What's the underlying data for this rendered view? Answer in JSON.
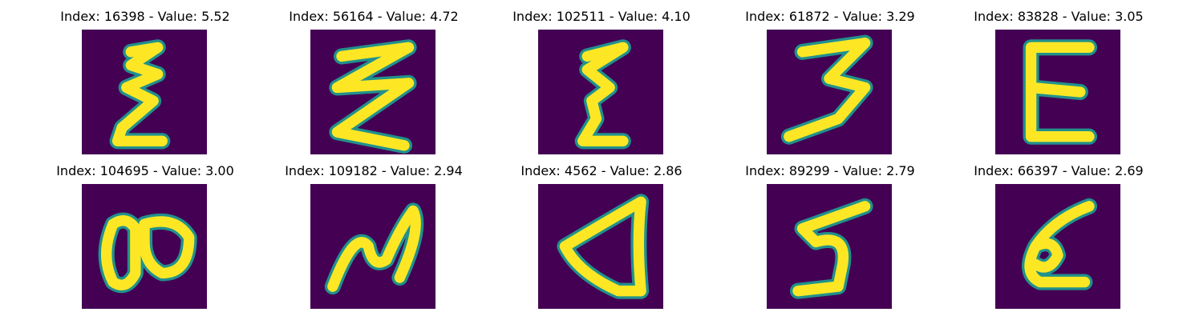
{
  "colors": {
    "background": "#440154",
    "stroke": "#fde725",
    "stroke_edge": "#21918c"
  },
  "panels": [
    {
      "index": 16398,
      "value": "5.52",
      "title": "Index: 16398 - Value: 5.52",
      "glyph": "zigzag-z"
    },
    {
      "index": 56164,
      "value": "4.72",
      "title": "Index: 56164 - Value: 4.72",
      "glyph": "wide-zigzag"
    },
    {
      "index": 102511,
      "value": "4.10",
      "title": "Index: 102511 - Value: 4.10",
      "glyph": "narrow-zigzag"
    },
    {
      "index": 61872,
      "value": "3.29",
      "title": "Index: 61872 - Value: 3.29",
      "glyph": "bold-three"
    },
    {
      "index": 83828,
      "value": "3.05",
      "title": "Index: 83828 - Value: 3.05",
      "glyph": "epsilon"
    },
    {
      "index": 104695,
      "value": "3.00",
      "title": "Index: 104695 - Value: 3.00",
      "glyph": "figure-eight"
    },
    {
      "index": 109182,
      "value": "2.94",
      "title": "Index: 109182 - Value: 2.94",
      "glyph": "wave-n"
    },
    {
      "index": 4562,
      "value": "2.86",
      "title": "Index: 4562 - Value: 2.86",
      "glyph": "triangle-loop"
    },
    {
      "index": 89299,
      "value": "2.79",
      "title": "Index: 89299 - Value: 2.79",
      "glyph": "five"
    },
    {
      "index": 66397,
      "value": "2.69",
      "title": "Index: 66397 - Value: 2.69",
      "glyph": "curl"
    }
  ]
}
